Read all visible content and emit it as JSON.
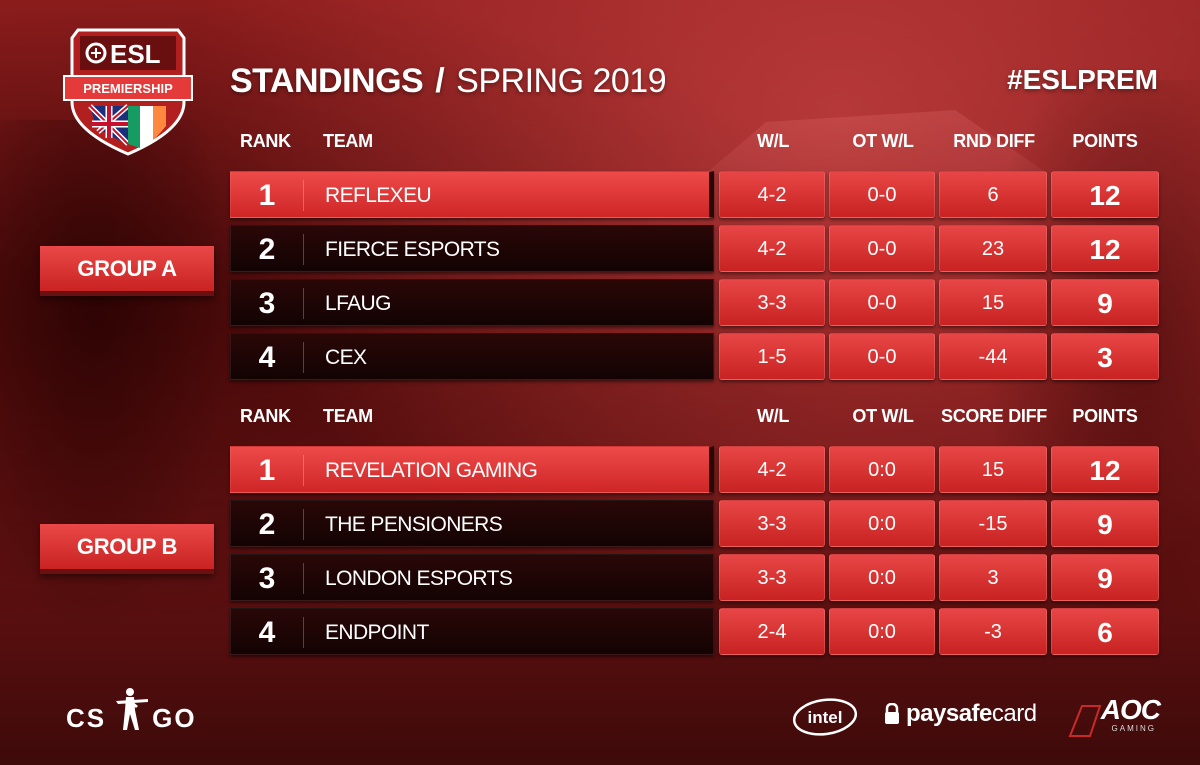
{
  "logo": {
    "brand": "ESL",
    "league": "PREMIERSHIP"
  },
  "header": {
    "title": "STANDINGS",
    "separator": "/",
    "season": "SPRING 2019",
    "hashtag": "#ESLPREM"
  },
  "group_a": {
    "label": "GROUP A",
    "columns": [
      "RANK",
      "TEAM",
      "W/L",
      "OT W/L",
      "RND DIFF",
      "POINTS"
    ],
    "rows": [
      {
        "rank": "1",
        "team": "REFLEXEU",
        "wl": "4-2",
        "ot": "0-0",
        "diff": "6",
        "points": "12"
      },
      {
        "rank": "2",
        "team": "FIERCE ESPORTS",
        "wl": "4-2",
        "ot": "0-0",
        "diff": "23",
        "points": "12"
      },
      {
        "rank": "3",
        "team": "LFAUG",
        "wl": "3-3",
        "ot": "0-0",
        "diff": "15",
        "points": "9"
      },
      {
        "rank": "4",
        "team": "CEX",
        "wl": "1-5",
        "ot": "0-0",
        "diff": "-44",
        "points": "3"
      }
    ]
  },
  "group_b": {
    "label": "GROUP B",
    "columns": [
      "RANK",
      "TEAM",
      "W/L",
      "OT W/L",
      "SCORE DIFF",
      "POINTS"
    ],
    "rows": [
      {
        "rank": "1",
        "team": "REVELATION GAMING",
        "wl": "4-2",
        "ot": "0:0",
        "diff": "15",
        "points": "12"
      },
      {
        "rank": "2",
        "team": "THE PENSIONERS",
        "wl": "3-3",
        "ot": "0:0",
        "diff": "-15",
        "points": "9"
      },
      {
        "rank": "3",
        "team": "LONDON ESPORTS",
        "wl": "3-3",
        "ot": "0:0",
        "diff": "3",
        "points": "9"
      },
      {
        "rank": "4",
        "team": "ENDPOINT",
        "wl": "2-4",
        "ot": "0:0",
        "diff": "-3",
        "points": "6"
      }
    ]
  },
  "sponsors": {
    "csgo_left": "CS",
    "csgo_right": "GO",
    "intel": "intel",
    "paysafe_bold": "paysafe",
    "paysafe_light": "card",
    "aoc": "AOC",
    "aoc_sub": "GAMING"
  },
  "colors": {
    "accent_red": "#d42b2b",
    "row_dark": "#1a0404",
    "background": "#7a1717"
  },
  "icons": [
    "esl-shield-icon",
    "union-jack-flag-icon",
    "irish-flag-icon",
    "csgo-soldier-icon",
    "paysafe-lock-icon",
    "aoc-emblem-icon"
  ]
}
